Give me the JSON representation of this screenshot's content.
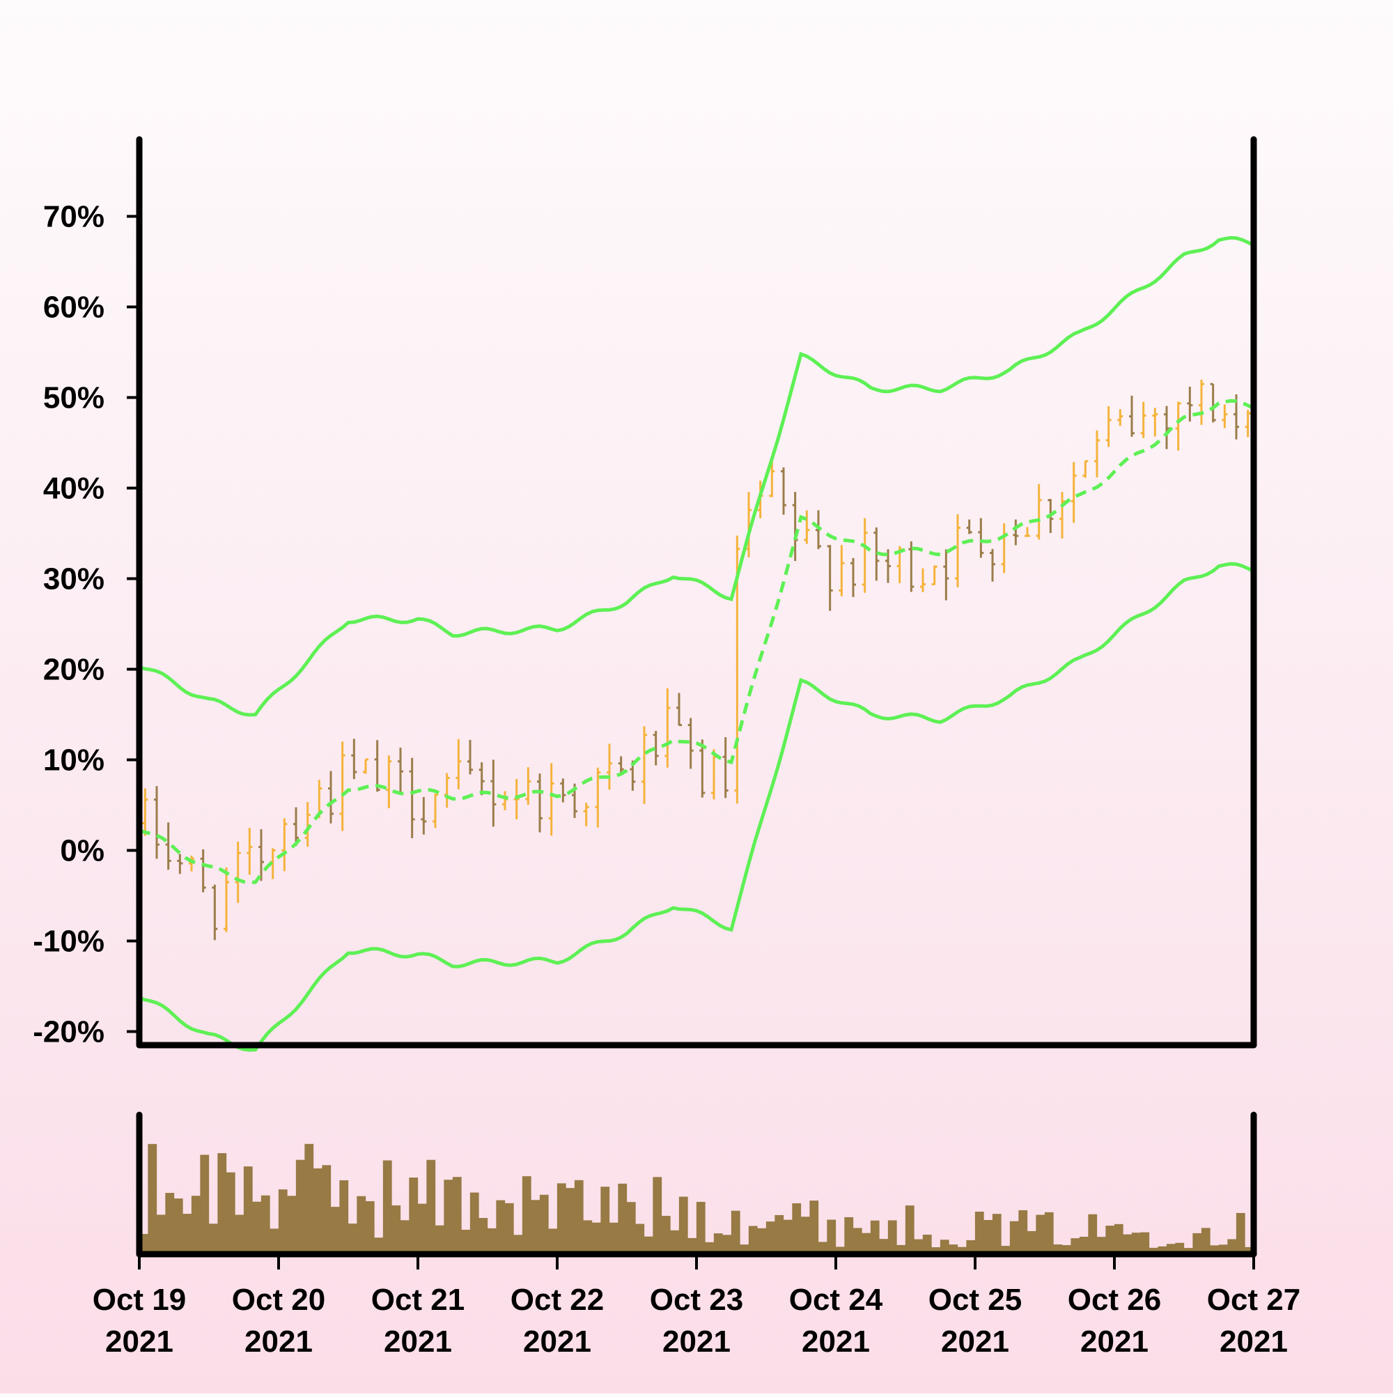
{
  "chart_data": {
    "type": "ohlc",
    "overlay": "bollinger-bands",
    "x_start": "2021-10-19 00:00",
    "x_end": "2021-10-27 00:00",
    "x_ticks": [
      {
        "line1": "Oct 19",
        "line2": "2021"
      },
      {
        "line1": "Oct 20",
        "line2": "2021"
      },
      {
        "line1": "Oct 21",
        "line2": "2021"
      },
      {
        "line1": "Oct 22",
        "line2": "2021"
      },
      {
        "line1": "Oct 23",
        "line2": "2021"
      },
      {
        "line1": "Oct 24",
        "line2": "2021"
      },
      {
        "line1": "Oct 25",
        "line2": "2021"
      },
      {
        "line1": "Oct 26",
        "line2": "2021"
      },
      {
        "line1": "Oct 27",
        "line2": "2021"
      }
    ],
    "y_ticks": [
      "70%",
      "60%",
      "50%",
      "40%",
      "30%",
      "20%",
      "10%",
      "0%",
      "-10%",
      "-20%"
    ],
    "y_tick_values": [
      70,
      60,
      50,
      40,
      30,
      20,
      10,
      0,
      -10,
      -20
    ],
    "ylim": [
      -21.5,
      78.5
    ],
    "close_anchors": [
      {
        "date": "2021-10-19 00:00",
        "value": 3
      },
      {
        "date": "2021-10-19 06:00",
        "value": 0
      },
      {
        "date": "2021-10-19 12:00",
        "value": -6
      },
      {
        "date": "2021-10-19 18:00",
        "value": -3
      },
      {
        "date": "2021-10-20 00:00",
        "value": 3
      },
      {
        "date": "2021-10-20 12:00",
        "value": 8
      },
      {
        "date": "2021-10-21 00:00",
        "value": 6
      },
      {
        "date": "2021-10-21 12:00",
        "value": 7
      },
      {
        "date": "2021-10-22 00:00",
        "value": 6
      },
      {
        "date": "2021-10-22 12:00",
        "value": 8
      },
      {
        "date": "2021-10-22 18:00",
        "value": 13
      },
      {
        "date": "2021-10-23 00:00",
        "value": 9
      },
      {
        "date": "2021-10-23 06:00",
        "value": 6
      },
      {
        "date": "2021-10-23 06:01",
        "value": 30
      },
      {
        "date": "2021-10-23 12:00",
        "value": 40
      },
      {
        "date": "2021-10-23 18:00",
        "value": 33
      },
      {
        "date": "2021-10-24 00:00",
        "value": 32
      },
      {
        "date": "2021-10-24 12:00",
        "value": 31
      },
      {
        "date": "2021-10-25 00:00",
        "value": 34
      },
      {
        "date": "2021-10-25 12:00",
        "value": 38
      },
      {
        "date": "2021-10-26 00:00",
        "value": 46
      },
      {
        "date": "2021-10-26 12:00",
        "value": 50
      },
      {
        "date": "2021-10-26 18:00",
        "value": 49
      },
      {
        "date": "2021-10-27 00:00",
        "value": 44
      }
    ],
    "bollinger": {
      "middle": [
        {
          "date": "2021-10-19 00:00",
          "value": 2.5
        },
        {
          "date": "2021-10-19 12:00",
          "value": -2
        },
        {
          "date": "2021-10-19 20:00",
          "value": -3.5
        },
        {
          "date": "2021-10-20 12:00",
          "value": 7
        },
        {
          "date": "2021-10-21 00:00",
          "value": 6.5
        },
        {
          "date": "2021-10-21 06:00",
          "value": 6
        },
        {
          "date": "2021-10-22 00:00",
          "value": 6.2
        },
        {
          "date": "2021-10-22 12:00",
          "value": 9
        },
        {
          "date": "2021-10-22 20:00",
          "value": 12.5
        },
        {
          "date": "2021-10-23 06:00",
          "value": 10
        },
        {
          "date": "2021-10-23 18:00",
          "value": 36.5
        },
        {
          "date": "2021-10-24 06:00",
          "value": 33
        },
        {
          "date": "2021-10-24 18:00",
          "value": 33
        },
        {
          "date": "2021-10-25 06:00",
          "value": 35
        },
        {
          "date": "2021-10-25 18:00",
          "value": 39
        },
        {
          "date": "2021-10-26 12:00",
          "value": 47.5
        },
        {
          "date": "2021-10-26 18:00",
          "value": 49.5
        },
        {
          "date": "2021-10-27 00:00",
          "value": 49
        }
      ],
      "upper": [
        {
          "date": "2021-10-19 00:00",
          "value": 20.5
        },
        {
          "date": "2021-10-19 12:00",
          "value": 16.5
        },
        {
          "date": "2021-10-19 20:00",
          "value": 15
        },
        {
          "date": "2021-10-20 12:00",
          "value": 25.5
        },
        {
          "date": "2021-10-21 00:00",
          "value": 25.5
        },
        {
          "date": "2021-10-21 06:00",
          "value": 24
        },
        {
          "date": "2021-10-22 00:00",
          "value": 24.5
        },
        {
          "date": "2021-10-22 12:00",
          "value": 27.5
        },
        {
          "date": "2021-10-22 20:00",
          "value": 30.5
        },
        {
          "date": "2021-10-23 06:00",
          "value": 28
        },
        {
          "date": "2021-10-23 18:00",
          "value": 54.5
        },
        {
          "date": "2021-10-24 06:00",
          "value": 51
        },
        {
          "date": "2021-10-24 18:00",
          "value": 51
        },
        {
          "date": "2021-10-25 06:00",
          "value": 53
        },
        {
          "date": "2021-10-25 18:00",
          "value": 57
        },
        {
          "date": "2021-10-26 12:00",
          "value": 65.5
        },
        {
          "date": "2021-10-26 18:00",
          "value": 67.5
        },
        {
          "date": "2021-10-27 00:00",
          "value": 67
        }
      ],
      "lower": [
        {
          "date": "2021-10-19 00:00",
          "value": -16
        },
        {
          "date": "2021-10-19 12:00",
          "value": -20.5
        },
        {
          "date": "2021-10-19 20:00",
          "value": -22
        },
        {
          "date": "2021-10-20 12:00",
          "value": -11
        },
        {
          "date": "2021-10-21 00:00",
          "value": -11.5
        },
        {
          "date": "2021-10-21 06:00",
          "value": -12.5
        },
        {
          "date": "2021-10-22 00:00",
          "value": -12.2
        },
        {
          "date": "2021-10-22 12:00",
          "value": -9
        },
        {
          "date": "2021-10-22 20:00",
          "value": -6
        },
        {
          "date": "2021-10-23 06:00",
          "value": -8.5
        },
        {
          "date": "2021-10-23 18:00",
          "value": 18.5
        },
        {
          "date": "2021-10-24 06:00",
          "value": 15
        },
        {
          "date": "2021-10-24 18:00",
          "value": 14.5
        },
        {
          "date": "2021-10-25 06:00",
          "value": 17
        },
        {
          "date": "2021-10-25 18:00",
          "value": 21
        },
        {
          "date": "2021-10-26 12:00",
          "value": 29.5
        },
        {
          "date": "2021-10-26 18:00",
          "value": 31.5
        },
        {
          "date": "2021-10-27 00:00",
          "value": 31
        }
      ]
    },
    "volume_envelope": [
      {
        "date": "2021-10-19 00:00",
        "value": 0.8
      },
      {
        "date": "2021-10-20 00:00",
        "value": 0.75
      },
      {
        "date": "2021-10-21 00:00",
        "value": 0.65
      },
      {
        "date": "2021-10-22 00:00",
        "value": 0.55
      },
      {
        "date": "2021-10-23 00:00",
        "value": 0.5
      },
      {
        "date": "2021-10-24 00:00",
        "value": 0.35
      },
      {
        "date": "2021-10-25 00:00",
        "value": 0.3
      },
      {
        "date": "2021-10-26 00:00",
        "value": 0.27
      },
      {
        "date": "2021-10-27 00:00",
        "value": 0.28
      }
    ],
    "grid": false,
    "legend": "none",
    "colors": {
      "up": "#f5b33b",
      "down": "#9b7d4a",
      "bands": "#5ef055",
      "volume": "#977a44",
      "axis": "#000000"
    }
  }
}
